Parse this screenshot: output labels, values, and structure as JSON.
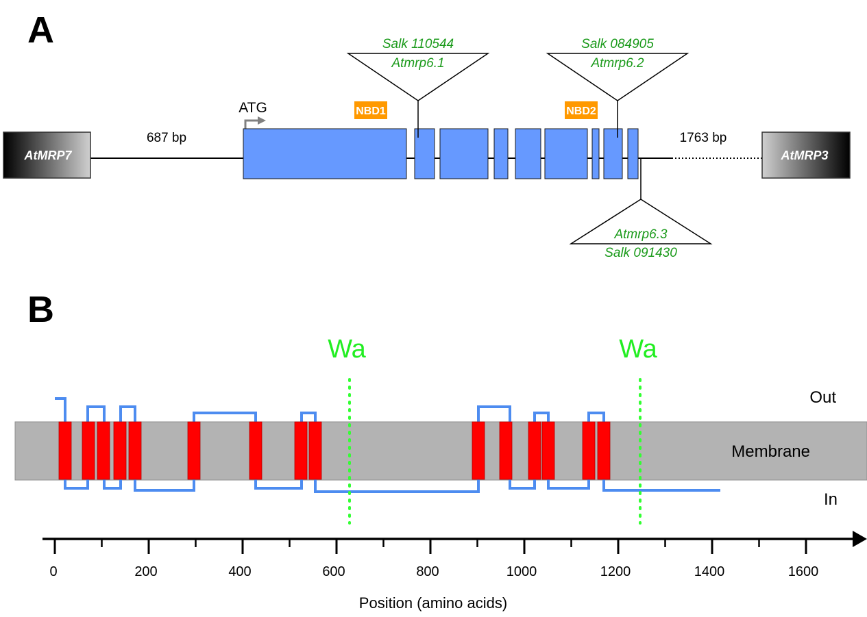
{
  "panel_a": {
    "letter": "A",
    "flank_left": "AtMRP7",
    "flank_right": "AtMRP3",
    "upstream_bp": "687 bp",
    "downstream_bp": "1763 bp",
    "start_codon": "ATG",
    "nbd1": "NBD1",
    "nbd2": "NBD2",
    "insertions": [
      {
        "salk": "Salk 110544",
        "allele": "Atmrp6.1"
      },
      {
        "salk": "Salk 084905",
        "allele": "Atmrp6.2"
      },
      {
        "allele": "Atmrp6.3",
        "salk": "Salk 091430"
      }
    ],
    "exon_color": "#6699ff"
  },
  "panel_b": {
    "letter": "B",
    "walker_a_1": "Wa",
    "walker_a_2": "Wa",
    "out_label": "Out",
    "membrane_label": "Membrane",
    "in_label": "In",
    "axis_title": "Position (amino acids)",
    "ticks": [
      "0",
      "200",
      "400",
      "600",
      "800",
      "1000",
      "1200",
      "1400",
      "1600"
    ],
    "tm_color": "#ff0000",
    "loop_color": "#4d8cf0",
    "membrane_color": "#b3b3b3",
    "walker_color": "#33ff33"
  }
}
